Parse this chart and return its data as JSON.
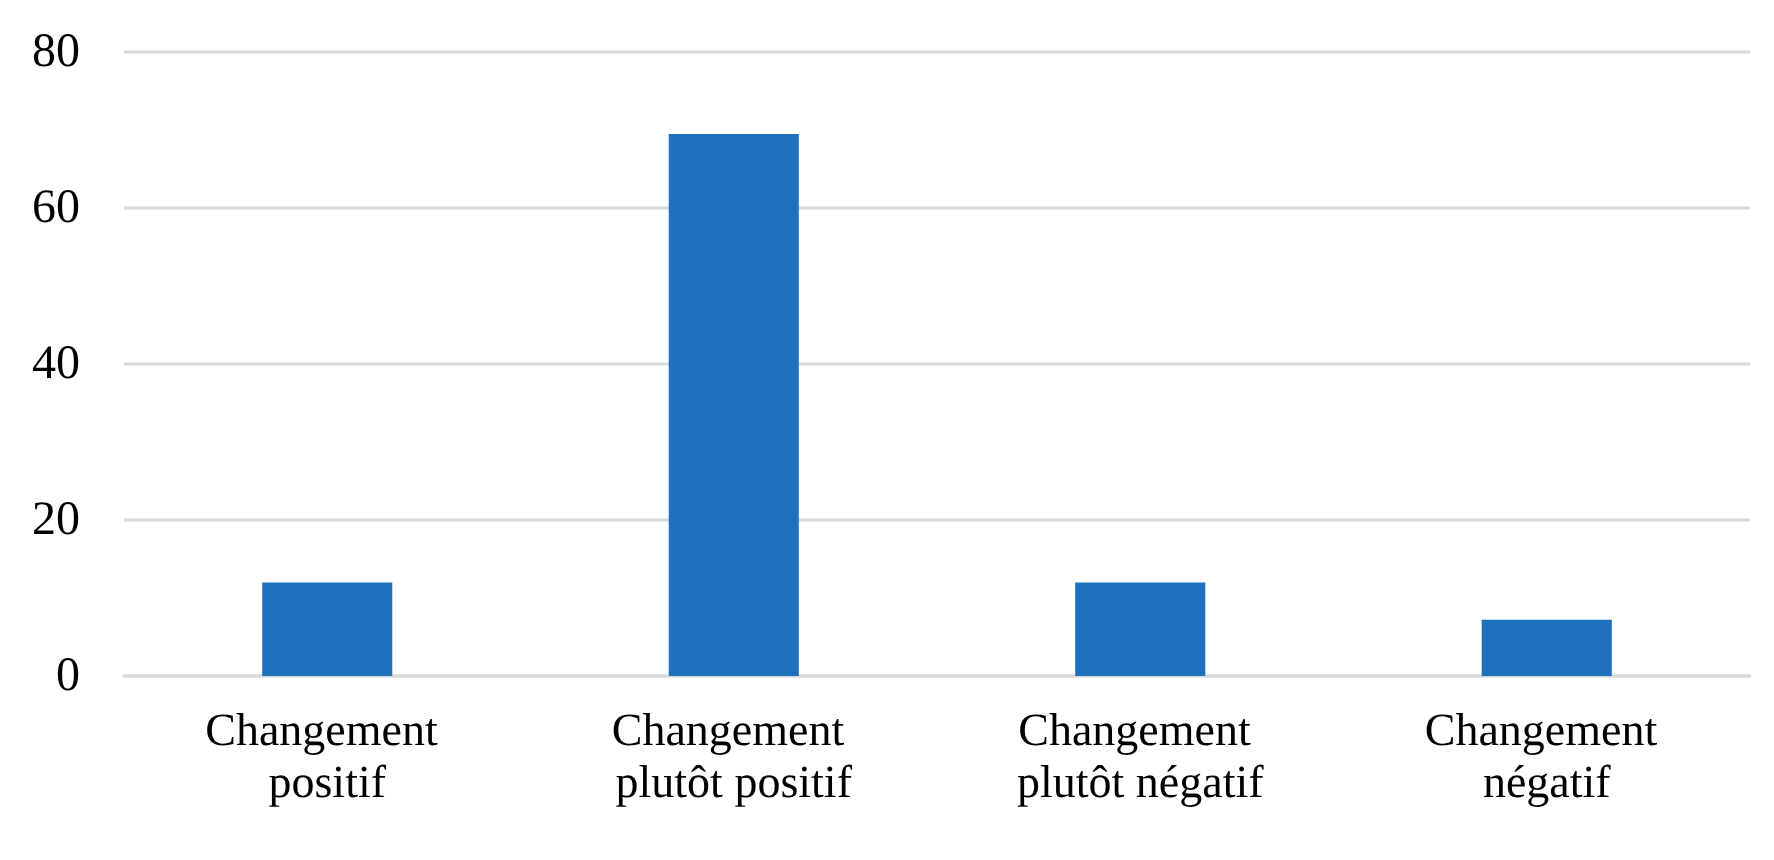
{
  "chart_data": {
    "type": "bar",
    "categories": [
      "Changement positif",
      "Changement plutôt positif",
      "Changement plutôt négatif",
      "Changement négatif"
    ],
    "values": [
      12,
      69.5,
      12,
      7.2
    ],
    "color": "#1f70bd",
    "ylim": [
      0,
      80
    ],
    "yticks": [
      0,
      20,
      40,
      60,
      80
    ],
    "grid": "y"
  }
}
